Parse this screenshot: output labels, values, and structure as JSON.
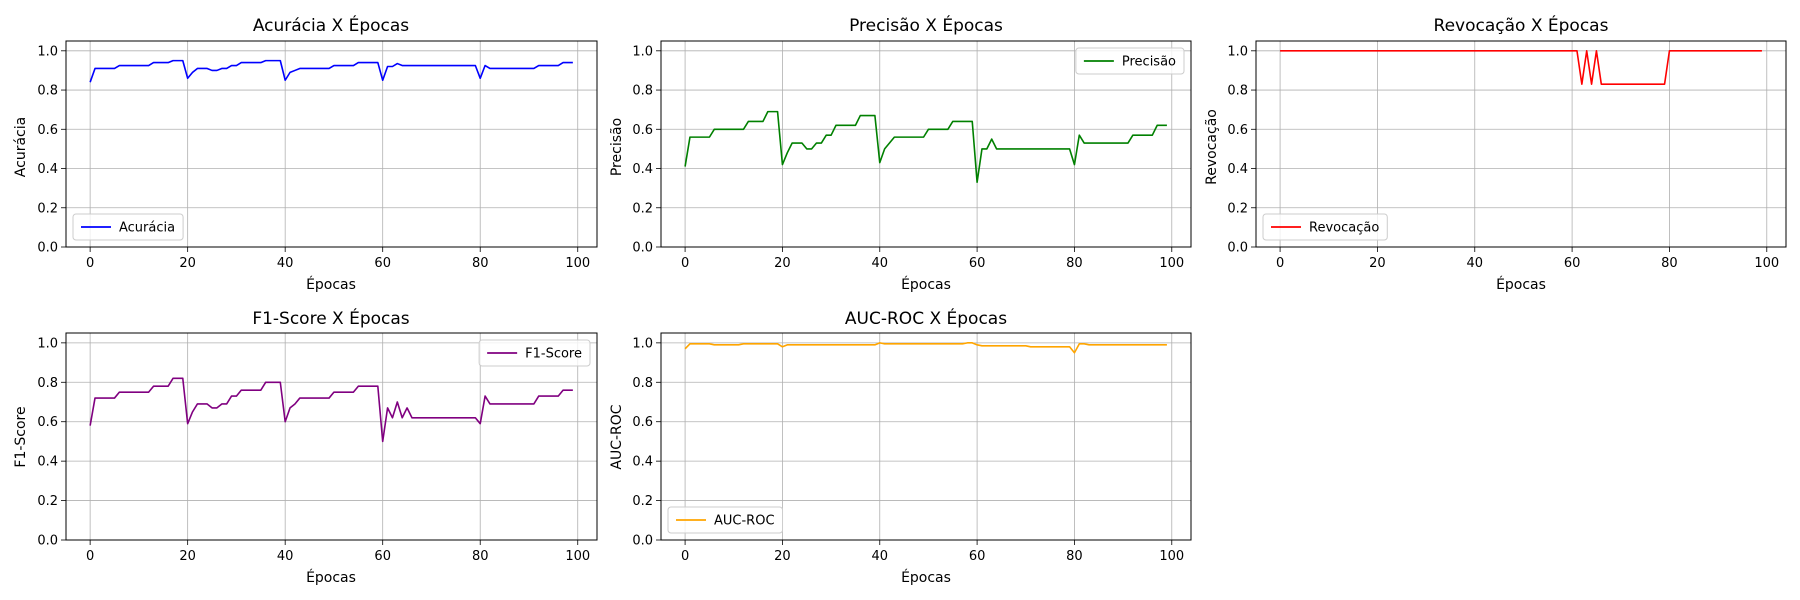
{
  "chart_data": [
    {
      "type": "line",
      "title": "Acurácia X Épocas",
      "xlabel": "Épocas",
      "ylabel": "Acurácia",
      "xlim": [
        -4.95,
        103.95
      ],
      "ylim": [
        0,
        1.05
      ],
      "xticks": [
        0,
        20,
        40,
        60,
        80,
        100
      ],
      "yticks": [
        0.0,
        0.2,
        0.4,
        0.6,
        0.8,
        1.0
      ],
      "grid": true,
      "legend_loc": "lower-left",
      "series": [
        {
          "name": "Acurácia",
          "color": "#0000ff",
          "x": [
            0,
            1,
            2,
            3,
            4,
            5,
            6,
            7,
            8,
            9,
            10,
            11,
            12,
            13,
            14,
            15,
            16,
            17,
            18,
            19,
            20,
            21,
            22,
            23,
            24,
            25,
            26,
            27,
            28,
            29,
            30,
            31,
            32,
            33,
            34,
            35,
            36,
            37,
            38,
            39,
            40,
            41,
            42,
            43,
            44,
            45,
            46,
            47,
            48,
            49,
            50,
            51,
            52,
            53,
            54,
            55,
            56,
            57,
            58,
            59,
            60,
            61,
            62,
            63,
            64,
            65,
            66,
            67,
            68,
            69,
            70,
            71,
            72,
            73,
            74,
            75,
            76,
            77,
            78,
            79,
            80,
            81,
            82,
            83,
            84,
            85,
            86,
            87,
            88,
            89,
            90,
            91,
            92,
            93,
            94,
            95,
            96,
            97,
            98,
            99
          ],
          "y": [
            0.84,
            0.91,
            0.91,
            0.91,
            0.91,
            0.91,
            0.925,
            0.925,
            0.925,
            0.925,
            0.925,
            0.925,
            0.925,
            0.94,
            0.94,
            0.94,
            0.94,
            0.95,
            0.95,
            0.95,
            0.86,
            0.89,
            0.91,
            0.91,
            0.91,
            0.9,
            0.9,
            0.91,
            0.91,
            0.925,
            0.925,
            0.94,
            0.94,
            0.94,
            0.94,
            0.94,
            0.95,
            0.95,
            0.95,
            0.95,
            0.85,
            0.89,
            0.9,
            0.91,
            0.91,
            0.91,
            0.91,
            0.91,
            0.91,
            0.91,
            0.925,
            0.925,
            0.925,
            0.925,
            0.925,
            0.94,
            0.94,
            0.94,
            0.94,
            0.94,
            0.85,
            0.92,
            0.92,
            0.935,
            0.925,
            0.925,
            0.925,
            0.925,
            0.925,
            0.925,
            0.925,
            0.925,
            0.925,
            0.925,
            0.925,
            0.925,
            0.925,
            0.925,
            0.925,
            0.925,
            0.86,
            0.925,
            0.91,
            0.91,
            0.91,
            0.91,
            0.91,
            0.91,
            0.91,
            0.91,
            0.91,
            0.91,
            0.925,
            0.925,
            0.925,
            0.925,
            0.925,
            0.94,
            0.94,
            0.94
          ]
        }
      ]
    },
    {
      "type": "line",
      "title": "Precisão X Épocas",
      "xlabel": "Épocas",
      "ylabel": "Precisão",
      "xlim": [
        -4.95,
        103.95
      ],
      "ylim": [
        0,
        1.05
      ],
      "xticks": [
        0,
        20,
        40,
        60,
        80,
        100
      ],
      "yticks": [
        0.0,
        0.2,
        0.4,
        0.6,
        0.8,
        1.0
      ],
      "grid": true,
      "legend_loc": "upper-right",
      "series": [
        {
          "name": "Precisão",
          "color": "#008000",
          "x": [
            0,
            1,
            2,
            3,
            4,
            5,
            6,
            7,
            8,
            9,
            10,
            11,
            12,
            13,
            14,
            15,
            16,
            17,
            18,
            19,
            20,
            21,
            22,
            23,
            24,
            25,
            26,
            27,
            28,
            29,
            30,
            31,
            32,
            33,
            34,
            35,
            36,
            37,
            38,
            39,
            40,
            41,
            42,
            43,
            44,
            45,
            46,
            47,
            48,
            49,
            50,
            51,
            52,
            53,
            54,
            55,
            56,
            57,
            58,
            59,
            60,
            61,
            62,
            63,
            64,
            65,
            66,
            67,
            68,
            69,
            70,
            71,
            72,
            73,
            74,
            75,
            76,
            77,
            78,
            79,
            80,
            81,
            82,
            83,
            84,
            85,
            86,
            87,
            88,
            89,
            90,
            91,
            92,
            93,
            94,
            95,
            96,
            97,
            98,
            99
          ],
          "y": [
            0.41,
            0.56,
            0.56,
            0.56,
            0.56,
            0.56,
            0.6,
            0.6,
            0.6,
            0.6,
            0.6,
            0.6,
            0.6,
            0.64,
            0.64,
            0.64,
            0.64,
            0.69,
            0.69,
            0.69,
            0.42,
            0.48,
            0.53,
            0.53,
            0.53,
            0.5,
            0.5,
            0.53,
            0.53,
            0.57,
            0.57,
            0.62,
            0.62,
            0.62,
            0.62,
            0.62,
            0.67,
            0.67,
            0.67,
            0.67,
            0.43,
            0.5,
            0.53,
            0.56,
            0.56,
            0.56,
            0.56,
            0.56,
            0.56,
            0.56,
            0.6,
            0.6,
            0.6,
            0.6,
            0.6,
            0.64,
            0.64,
            0.64,
            0.64,
            0.64,
            0.33,
            0.5,
            0.5,
            0.55,
            0.5,
            0.5,
            0.5,
            0.5,
            0.5,
            0.5,
            0.5,
            0.5,
            0.5,
            0.5,
            0.5,
            0.5,
            0.5,
            0.5,
            0.5,
            0.5,
            0.42,
            0.57,
            0.53,
            0.53,
            0.53,
            0.53,
            0.53,
            0.53,
            0.53,
            0.53,
            0.53,
            0.53,
            0.57,
            0.57,
            0.57,
            0.57,
            0.57,
            0.62,
            0.62,
            0.62
          ]
        }
      ]
    },
    {
      "type": "line",
      "title": "Revocação X Épocas",
      "xlabel": "Épocas",
      "ylabel": "Revocação",
      "xlim": [
        -4.95,
        103.95
      ],
      "ylim": [
        0,
        1.05
      ],
      "xticks": [
        0,
        20,
        40,
        60,
        80,
        100
      ],
      "yticks": [
        0.0,
        0.2,
        0.4,
        0.6,
        0.8,
        1.0
      ],
      "grid": true,
      "legend_loc": "lower-left",
      "series": [
        {
          "name": "Revocação",
          "color": "#ff0000",
          "x": [
            0,
            1,
            2,
            3,
            4,
            5,
            6,
            7,
            8,
            9,
            10,
            11,
            12,
            13,
            14,
            15,
            16,
            17,
            18,
            19,
            20,
            21,
            22,
            23,
            24,
            25,
            26,
            27,
            28,
            29,
            30,
            31,
            32,
            33,
            34,
            35,
            36,
            37,
            38,
            39,
            40,
            41,
            42,
            43,
            44,
            45,
            46,
            47,
            48,
            49,
            50,
            51,
            52,
            53,
            54,
            55,
            56,
            57,
            58,
            59,
            60,
            61,
            62,
            63,
            64,
            65,
            66,
            67,
            68,
            69,
            70,
            71,
            72,
            73,
            74,
            75,
            76,
            77,
            78,
            79,
            80,
            81,
            82,
            83,
            84,
            85,
            86,
            87,
            88,
            89,
            90,
            91,
            92,
            93,
            94,
            95,
            96,
            97,
            98,
            99
          ],
          "y": [
            1,
            1,
            1,
            1,
            1,
            1,
            1,
            1,
            1,
            1,
            1,
            1,
            1,
            1,
            1,
            1,
            1,
            1,
            1,
            1,
            1,
            1,
            1,
            1,
            1,
            1,
            1,
            1,
            1,
            1,
            1,
            1,
            1,
            1,
            1,
            1,
            1,
            1,
            1,
            1,
            1,
            1,
            1,
            1,
            1,
            1,
            1,
            1,
            1,
            1,
            1,
            1,
            1,
            1,
            1,
            1,
            1,
            1,
            1,
            1,
            1,
            1,
            0.83,
            1,
            0.83,
            1,
            0.83,
            0.83,
            0.83,
            0.83,
            0.83,
            0.83,
            0.83,
            0.83,
            0.83,
            0.83,
            0.83,
            0.83,
            0.83,
            0.83,
            1,
            1,
            1,
            1,
            1,
            1,
            1,
            1,
            1,
            1,
            1,
            1,
            1,
            1,
            1,
            1,
            1,
            1,
            1,
            1
          ]
        }
      ]
    },
    {
      "type": "line",
      "title": "F1-Score X Épocas",
      "xlabel": "Épocas",
      "ylabel": "F1-Score",
      "xlim": [
        -4.95,
        103.95
      ],
      "ylim": [
        0,
        1.05
      ],
      "xticks": [
        0,
        20,
        40,
        60,
        80,
        100
      ],
      "yticks": [
        0.0,
        0.2,
        0.4,
        0.6,
        0.8,
        1.0
      ],
      "grid": true,
      "legend_loc": "upper-right",
      "series": [
        {
          "name": "F1-Score",
          "color": "#800080",
          "x": [
            0,
            1,
            2,
            3,
            4,
            5,
            6,
            7,
            8,
            9,
            10,
            11,
            12,
            13,
            14,
            15,
            16,
            17,
            18,
            19,
            20,
            21,
            22,
            23,
            24,
            25,
            26,
            27,
            28,
            29,
            30,
            31,
            32,
            33,
            34,
            35,
            36,
            37,
            38,
            39,
            40,
            41,
            42,
            43,
            44,
            45,
            46,
            47,
            48,
            49,
            50,
            51,
            52,
            53,
            54,
            55,
            56,
            57,
            58,
            59,
            60,
            61,
            62,
            63,
            64,
            65,
            66,
            67,
            68,
            69,
            70,
            71,
            72,
            73,
            74,
            75,
            76,
            77,
            78,
            79,
            80,
            81,
            82,
            83,
            84,
            85,
            86,
            87,
            88,
            89,
            90,
            91,
            92,
            93,
            94,
            95,
            96,
            97,
            98,
            99
          ],
          "y": [
            0.58,
            0.72,
            0.72,
            0.72,
            0.72,
            0.72,
            0.75,
            0.75,
            0.75,
            0.75,
            0.75,
            0.75,
            0.75,
            0.78,
            0.78,
            0.78,
            0.78,
            0.82,
            0.82,
            0.82,
            0.59,
            0.65,
            0.69,
            0.69,
            0.69,
            0.67,
            0.67,
            0.69,
            0.69,
            0.73,
            0.73,
            0.76,
            0.76,
            0.76,
            0.76,
            0.76,
            0.8,
            0.8,
            0.8,
            0.8,
            0.6,
            0.67,
            0.69,
            0.72,
            0.72,
            0.72,
            0.72,
            0.72,
            0.72,
            0.72,
            0.75,
            0.75,
            0.75,
            0.75,
            0.75,
            0.78,
            0.78,
            0.78,
            0.78,
            0.78,
            0.5,
            0.67,
            0.62,
            0.7,
            0.62,
            0.67,
            0.62,
            0.62,
            0.62,
            0.62,
            0.62,
            0.62,
            0.62,
            0.62,
            0.62,
            0.62,
            0.62,
            0.62,
            0.62,
            0.62,
            0.59,
            0.73,
            0.69,
            0.69,
            0.69,
            0.69,
            0.69,
            0.69,
            0.69,
            0.69,
            0.69,
            0.69,
            0.73,
            0.73,
            0.73,
            0.73,
            0.73,
            0.76,
            0.76,
            0.76
          ]
        }
      ]
    },
    {
      "type": "line",
      "title": "AUC-ROC X Épocas",
      "xlabel": "Épocas",
      "ylabel": "AUC-ROC",
      "xlim": [
        -4.95,
        103.95
      ],
      "ylim": [
        0,
        1.05
      ],
      "xticks": [
        0,
        20,
        40,
        60,
        80,
        100
      ],
      "yticks": [
        0.0,
        0.2,
        0.4,
        0.6,
        0.8,
        1.0
      ],
      "grid": true,
      "legend_loc": "lower-left",
      "series": [
        {
          "name": "AUC-ROC",
          "color": "#ffa500",
          "x": [
            0,
            1,
            2,
            3,
            4,
            5,
            6,
            7,
            8,
            9,
            10,
            11,
            12,
            13,
            14,
            15,
            16,
            17,
            18,
            19,
            20,
            21,
            22,
            23,
            24,
            25,
            26,
            27,
            28,
            29,
            30,
            31,
            32,
            33,
            34,
            35,
            36,
            37,
            38,
            39,
            40,
            41,
            42,
            43,
            44,
            45,
            46,
            47,
            48,
            49,
            50,
            51,
            52,
            53,
            54,
            55,
            56,
            57,
            58,
            59,
            60,
            61,
            62,
            63,
            64,
            65,
            66,
            67,
            68,
            69,
            70,
            71,
            72,
            73,
            74,
            75,
            76,
            77,
            78,
            79,
            80,
            81,
            82,
            83,
            84,
            85,
            86,
            87,
            88,
            89,
            90,
            91,
            92,
            93,
            94,
            95,
            96,
            97,
            98,
            99
          ],
          "y": [
            0.97,
            0.995,
            0.995,
            0.995,
            0.995,
            0.995,
            0.99,
            0.99,
            0.99,
            0.99,
            0.99,
            0.99,
            0.995,
            0.995,
            0.995,
            0.995,
            0.995,
            0.995,
            0.995,
            0.995,
            0.98,
            0.99,
            0.99,
            0.99,
            0.99,
            0.99,
            0.99,
            0.99,
            0.99,
            0.99,
            0.99,
            0.99,
            0.99,
            0.99,
            0.99,
            0.99,
            0.99,
            0.99,
            0.99,
            0.99,
            1.0,
            0.995,
            0.995,
            0.995,
            0.995,
            0.995,
            0.995,
            0.995,
            0.995,
            0.995,
            0.995,
            0.995,
            0.995,
            0.995,
            0.995,
            0.995,
            0.995,
            0.995,
            1.0,
            1.0,
            0.99,
            0.985,
            0.985,
            0.985,
            0.985,
            0.985,
            0.985,
            0.985,
            0.985,
            0.985,
            0.985,
            0.98,
            0.98,
            0.98,
            0.98,
            0.98,
            0.98,
            0.98,
            0.98,
            0.98,
            0.95,
            0.995,
            0.995,
            0.99,
            0.99,
            0.99,
            0.99,
            0.99,
            0.99,
            0.99,
            0.99,
            0.99,
            0.99,
            0.99,
            0.99,
            0.99,
            0.99,
            0.99,
            0.99,
            0.99
          ]
        }
      ]
    }
  ]
}
